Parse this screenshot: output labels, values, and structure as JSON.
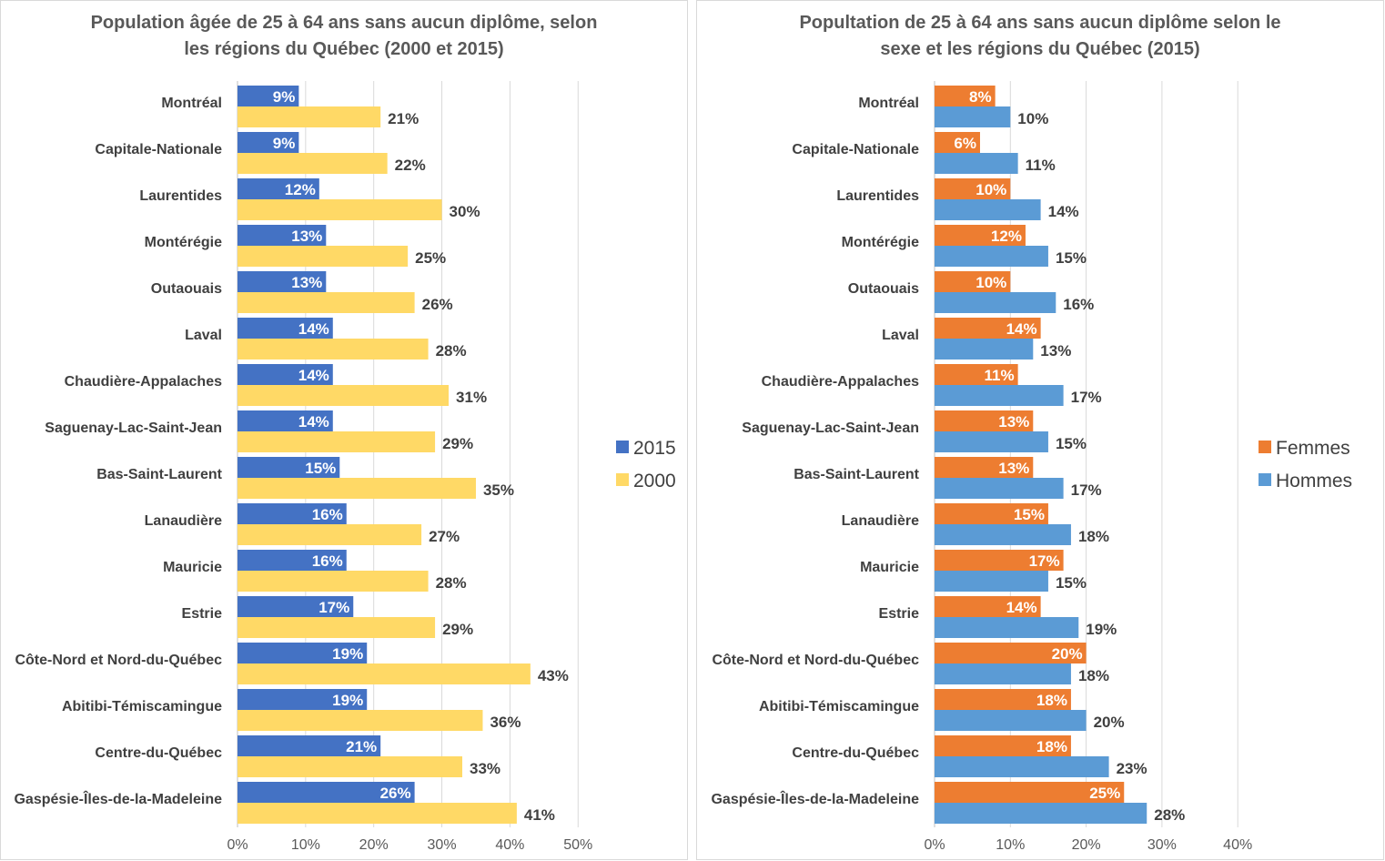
{
  "chart_data": [
    {
      "type": "bar",
      "orientation": "horizontal",
      "title_line1": "Population âgée de 25 à 64 ans sans aucun diplôme, selon",
      "title_line2": "les régions du Québec (2000 et 2015)",
      "categories": [
        "Montréal",
        "Capitale-Nationale",
        "Laurentides",
        "Montérégie",
        "Outaouais",
        "Laval",
        "Chaudière-Appalaches",
        "Saguenay-Lac-Saint-Jean",
        "Bas-Saint-Laurent",
        "Lanaudière",
        "Mauricie",
        "Estrie",
        "Côte-Nord et Nord-du-Québec",
        "Abitibi-Témiscamingue",
        "Centre-du-Québec",
        "Gaspésie-Îles-de-la-Madeleine"
      ],
      "series": [
        {
          "name": "2015",
          "color": "#4472c4",
          "label_color": "#ffffff",
          "label_position": "inside-end",
          "values": [
            9,
            9,
            12,
            13,
            13,
            14,
            14,
            14,
            15,
            16,
            16,
            17,
            19,
            19,
            21,
            26
          ]
        },
        {
          "name": "2000",
          "color": "#ffd966",
          "label_color": "#404040",
          "label_position": "outside-end",
          "values": [
            21,
            22,
            30,
            25,
            26,
            28,
            31,
            29,
            35,
            27,
            28,
            29,
            43,
            36,
            33,
            41
          ]
        }
      ],
      "xlim": [
        0,
        50
      ],
      "ticks": [
        "0%",
        "10%",
        "20%",
        "30%",
        "40%",
        "50%"
      ],
      "tick_values": [
        0,
        10,
        20,
        30,
        40,
        50
      ],
      "value_suffix": "%",
      "grid": true,
      "legend_position": "right"
    },
    {
      "type": "bar",
      "orientation": "horizontal",
      "title_line1": "Popultation de 25 à 64 ans sans aucun diplôme selon le",
      "title_line2": "sexe et les régions du Québec (2015)",
      "categories": [
        "Montréal",
        "Capitale-Nationale",
        "Laurentides",
        "Montérégie",
        "Outaouais",
        "Laval",
        "Chaudière-Appalaches",
        "Saguenay-Lac-Saint-Jean",
        "Bas-Saint-Laurent",
        "Lanaudière",
        "Mauricie",
        "Estrie",
        "Côte-Nord et Nord-du-Québec",
        "Abitibi-Témiscamingue",
        "Centre-du-Québec",
        "Gaspésie-Îles-de-la-Madeleine"
      ],
      "series": [
        {
          "name": "Femmes",
          "color": "#ed7d31",
          "label_color": "#ffffff",
          "label_position": "inside-end",
          "values": [
            8,
            6,
            10,
            12,
            10,
            14,
            11,
            13,
            13,
            15,
            17,
            14,
            20,
            18,
            18,
            25
          ]
        },
        {
          "name": "Hommes",
          "color": "#5b9bd5",
          "label_color": "#404040",
          "label_position": "outside-end",
          "values": [
            10,
            11,
            14,
            15,
            16,
            13,
            17,
            15,
            17,
            18,
            15,
            19,
            18,
            20,
            23,
            28
          ]
        }
      ],
      "xlim": [
        0,
        40
      ],
      "ticks": [
        "0%",
        "10%",
        "20%",
        "30%",
        "40%"
      ],
      "tick_values": [
        0,
        10,
        20,
        30,
        40
      ],
      "value_suffix": "%",
      "grid": true,
      "legend_position": "right"
    }
  ]
}
